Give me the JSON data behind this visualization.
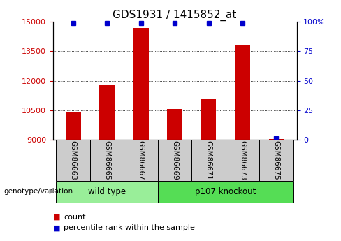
{
  "title": "GDS1931 / 1415852_at",
  "samples": [
    "GSM86663",
    "GSM86665",
    "GSM86667",
    "GSM86669",
    "GSM86671",
    "GSM86673",
    "GSM86675"
  ],
  "counts": [
    10400,
    11800,
    14700,
    10550,
    11050,
    13800,
    9050
  ],
  "percentiles": [
    99,
    99,
    99,
    99,
    99,
    99,
    1
  ],
  "ylim_left": [
    9000,
    15000
  ],
  "yticks_left": [
    9000,
    10500,
    12000,
    13500,
    15000
  ],
  "ylim_right": [
    0,
    100
  ],
  "yticks_right": [
    0,
    25,
    50,
    75,
    100
  ],
  "bar_color": "#cc0000",
  "dot_color": "#0000cc",
  "bar_width": 0.45,
  "groups": [
    {
      "label": "wild type",
      "indices": [
        0,
        1,
        2
      ],
      "color": "#99ee99"
    },
    {
      "label": "p107 knockout",
      "indices": [
        3,
        4,
        5,
        6
      ],
      "color": "#55dd55"
    }
  ],
  "group_label": "genotype/variation",
  "legend_count": "count",
  "legend_percentile": "percentile rank within the sample",
  "background_color": "#ffffff",
  "tick_label_size": 8,
  "title_size": 11,
  "sample_box_color": "#cccccc"
}
